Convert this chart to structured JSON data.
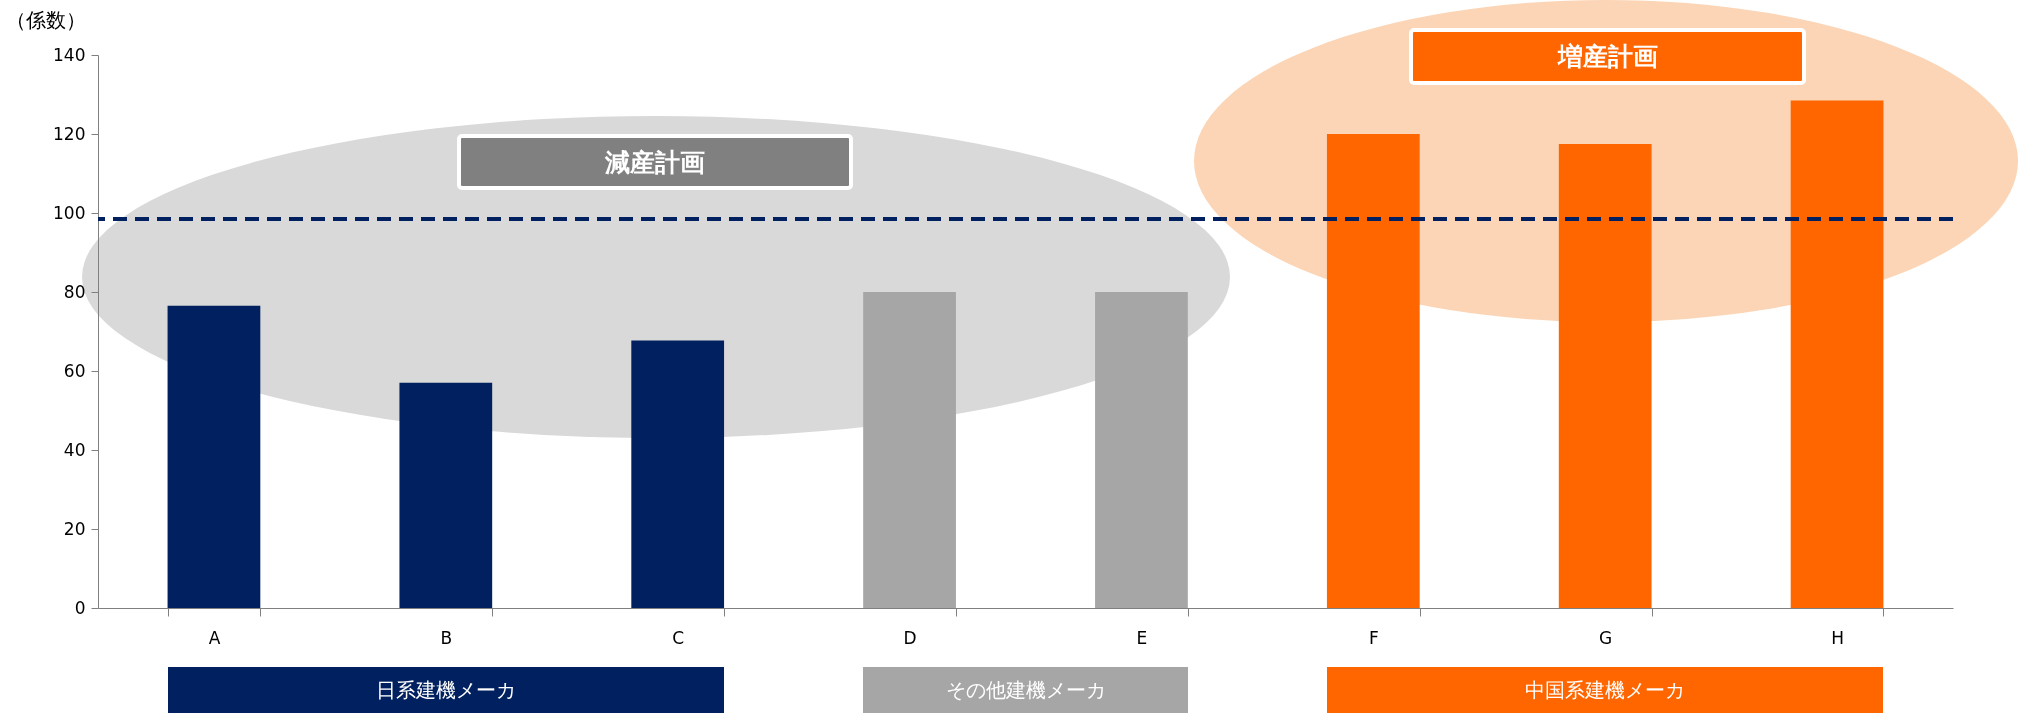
{
  "chart_data": {
    "type": "bar",
    "ylabel": "（係数）",
    "categories": [
      "A",
      "B",
      "C",
      "D",
      "E",
      "F",
      "G",
      "H"
    ],
    "values": [
      76.5,
      57,
      67.7,
      80,
      80,
      120,
      117.5,
      128.5
    ],
    "colors": [
      "#002060",
      "#002060",
      "#002060",
      "#a6a6a6",
      "#a6a6a6",
      "#ff6600",
      "#ff6600",
      "#ff6600"
    ],
    "ylim": [
      0,
      140
    ],
    "yticks": [
      0,
      20,
      40,
      60,
      80,
      100,
      120,
      140
    ],
    "grid": false,
    "legend": false,
    "ref_lines": [
      {
        "axis": "y",
        "value": 98.5,
        "color": "#002060",
        "line_style": "dashed"
      }
    ],
    "annotations": [
      "減産計画",
      "増産計画",
      "日系建機メーカ",
      "その他建機メーカ",
      "中国系建機メーカ"
    ]
  }
}
